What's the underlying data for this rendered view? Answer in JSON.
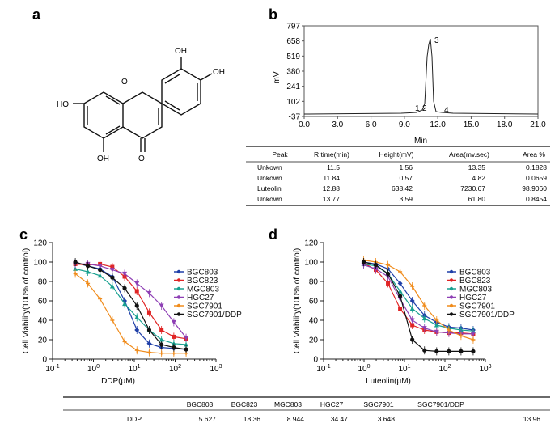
{
  "panels": {
    "a": {
      "letter": "a",
      "atoms": [
        "OH",
        "OH",
        "HO",
        "O",
        "OH",
        "O"
      ]
    },
    "b": {
      "letter": "b",
      "chromatogram": {
        "ylabel": "mV",
        "xlabel": "Min",
        "yticks": [
          "797",
          "658",
          "519",
          "380",
          "241",
          "102",
          "-37"
        ],
        "xticks": [
          "0.0",
          "3.0",
          "6.0",
          "9.0",
          "12.0",
          "15.0",
          "18.0",
          "21.0"
        ],
        "peak_labels": [
          "1",
          "2",
          "3",
          "4"
        ]
      },
      "table": {
        "headers": [
          "Peak",
          "R time(min)",
          "Height(mV)",
          "Area(mv.sec)",
          "Area %"
        ],
        "rows": [
          [
            "Unkown",
            "11.5",
            "1.56",
            "13.35",
            "0.1828"
          ],
          [
            "Unkown",
            "11.84",
            "0.57",
            "4.82",
            "0.0659"
          ],
          [
            "Luteolin",
            "12.88",
            "638.42",
            "7230.67",
            "98.9060"
          ],
          [
            "Unkown",
            "13.77",
            "3.59",
            "61.80",
            "0.8454"
          ]
        ]
      }
    },
    "c": {
      "letter": "c"
    },
    "d": {
      "letter": "d"
    },
    "ic50_table": {
      "headers": [
        "BGC803",
        "BGC823",
        "MGC803",
        "HGC27",
        "SGC7901",
        "SGC7901/DDP"
      ],
      "row_label": "DDP",
      "values": [
        "5.627",
        "18.36",
        "8.944",
        "34.47",
        "3.648",
        "13.96"
      ]
    }
  },
  "chart_data": [
    {
      "panel": "c",
      "type": "line",
      "xscale": "log",
      "xlim": [
        0.1,
        1000
      ],
      "ylim": [
        0,
        120
      ],
      "xlabel": "DDP(μM)",
      "ylabel": "Cell Viability(100% of control)",
      "yticks": [
        "0",
        "20",
        "40",
        "60",
        "80",
        "100",
        "120"
      ],
      "xticks": [
        "10-1",
        "100",
        "101",
        "102",
        "103"
      ],
      "x": [
        0.36,
        0.73,
        1.45,
        2.9,
        5.8,
        11.6,
        23.2,
        46.4,
        92.8,
        185.6
      ],
      "series": [
        {
          "name": "BGC803",
          "color": "#1f3fa8",
          "values": [
            99,
            96,
            93,
            85,
            60,
            30,
            16,
            12,
            11,
            10
          ]
        },
        {
          "name": "BGC823",
          "color": "#e02424",
          "values": [
            98,
            97,
            98,
            95,
            85,
            70,
            48,
            30,
            23,
            21
          ]
        },
        {
          "name": "MGC803",
          "color": "#18a090",
          "values": [
            93,
            90,
            86,
            75,
            57,
            43,
            30,
            20,
            16,
            15
          ]
        },
        {
          "name": "HGC27",
          "color": "#8e3fb5",
          "values": [
            98,
            98,
            96,
            92,
            88,
            78,
            68,
            55,
            38,
            22
          ]
        },
        {
          "name": "SGC7901",
          "color": "#f08c1c",
          "values": [
            88,
            78,
            62,
            40,
            18,
            9,
            7,
            6,
            6,
            6
          ]
        },
        {
          "name": "SGC7901/DDP",
          "color": "#111111",
          "values": [
            100,
            96,
            92,
            84,
            73,
            55,
            30,
            15,
            12,
            10
          ]
        }
      ]
    },
    {
      "panel": "d",
      "type": "line",
      "xscale": "log",
      "xlim": [
        0.1,
        1000
      ],
      "ylim": [
        0,
        120
      ],
      "xlabel": "Luteolin(μM)",
      "ylabel": "Cell Viability(100% of control)",
      "yticks": [
        "0",
        "20",
        "40",
        "60",
        "80",
        "100",
        "120"
      ],
      "xticks": [
        "10-1",
        "100",
        "101",
        "102",
        "103"
      ],
      "x": [
        0.98,
        1.95,
        3.9,
        7.8,
        15.6,
        31.25,
        62.5,
        125,
        250,
        500
      ],
      "series": [
        {
          "name": "BGC803",
          "color": "#1f3fa8",
          "values": [
            100,
            98,
            93,
            78,
            60,
            45,
            38,
            33,
            32,
            30
          ]
        },
        {
          "name": "BGC823",
          "color": "#e02424",
          "values": [
            99,
            92,
            78,
            52,
            35,
            30,
            28,
            27,
            27,
            26
          ]
        },
        {
          "name": "MGC803",
          "color": "#18a090",
          "values": [
            98,
            96,
            88,
            70,
            52,
            42,
            35,
            32,
            30,
            29
          ]
        },
        {
          "name": "HGC27",
          "color": "#8e3fb5",
          "values": [
            97,
            93,
            85,
            62,
            40,
            32,
            28,
            27,
            26,
            26
          ]
        },
        {
          "name": "SGC7901",
          "color": "#f08c1c",
          "values": [
            102,
            100,
            97,
            90,
            75,
            55,
            40,
            30,
            24,
            20
          ]
        },
        {
          "name": "SGC7901/DDP",
          "color": "#111111",
          "values": [
            100,
            97,
            88,
            65,
            20,
            9,
            8,
            8,
            8,
            8
          ]
        }
      ]
    }
  ]
}
